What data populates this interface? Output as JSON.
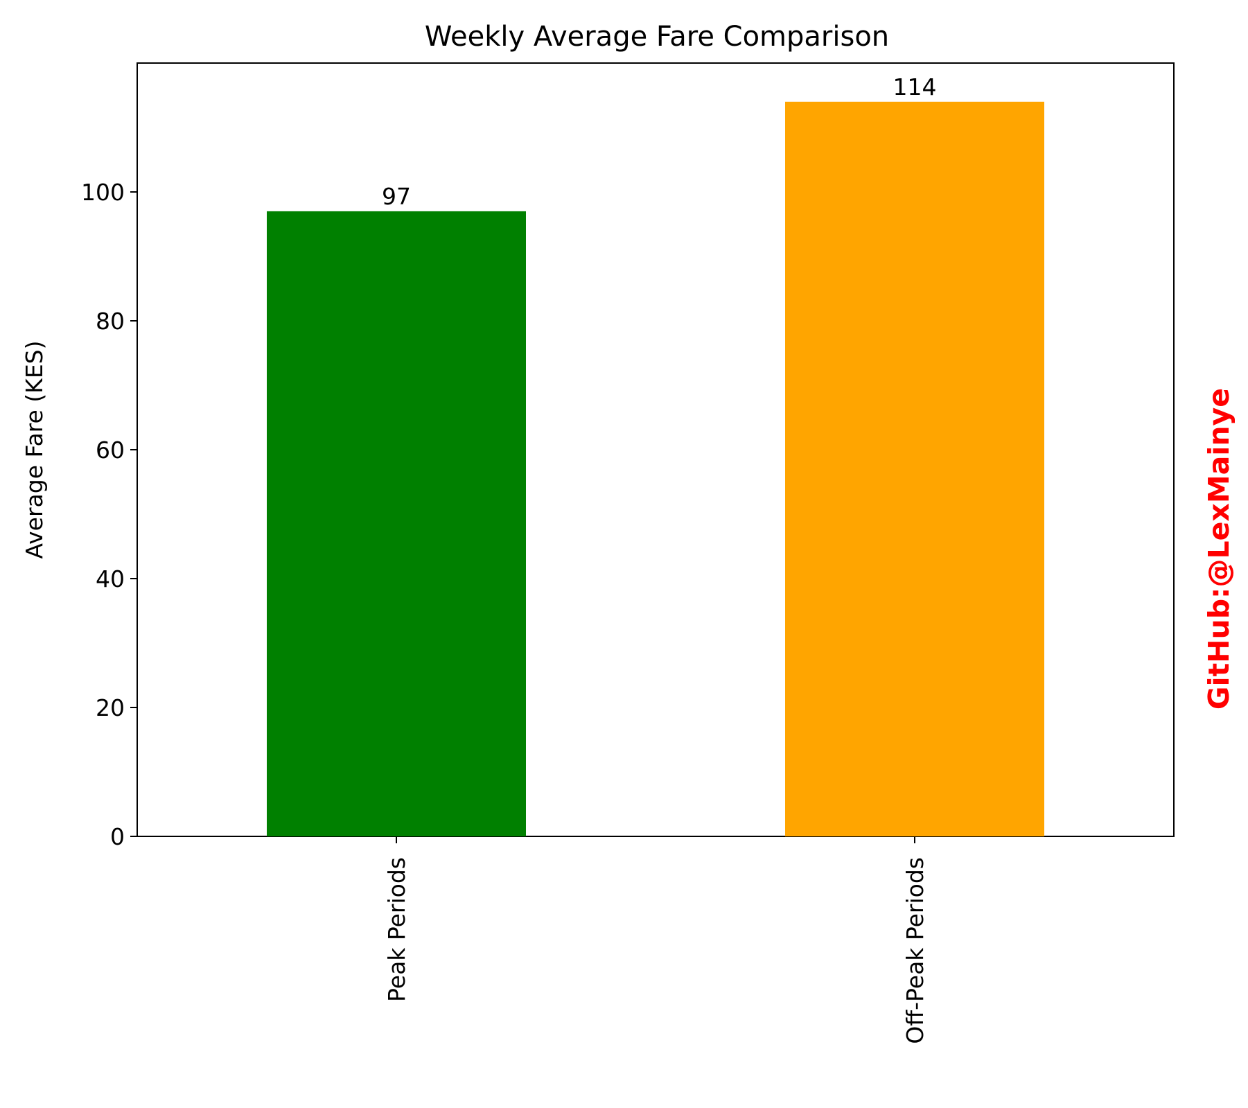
{
  "chart_data": {
    "type": "bar",
    "title": "Weekly Average Fare Comparison",
    "xlabel": "",
    "ylabel": "Average Fare (KES)",
    "categories": [
      "Peak Periods",
      "Off-Peak Periods"
    ],
    "values": [
      97,
      114
    ],
    "data_labels": [
      "97",
      "114"
    ],
    "bar_colors": [
      "#008000",
      "#ffa500"
    ],
    "ylim": [
      0,
      120
    ],
    "yticks": [
      0,
      20,
      40,
      60,
      80,
      100
    ],
    "ytick_labels": [
      "0",
      "20",
      "40",
      "60",
      "80",
      "100"
    ],
    "xtick_rotation": "vertical",
    "grid": false,
    "legend": "none"
  },
  "watermark": {
    "text": "GitHub:@LexMainye",
    "color": "#ff0000"
  }
}
